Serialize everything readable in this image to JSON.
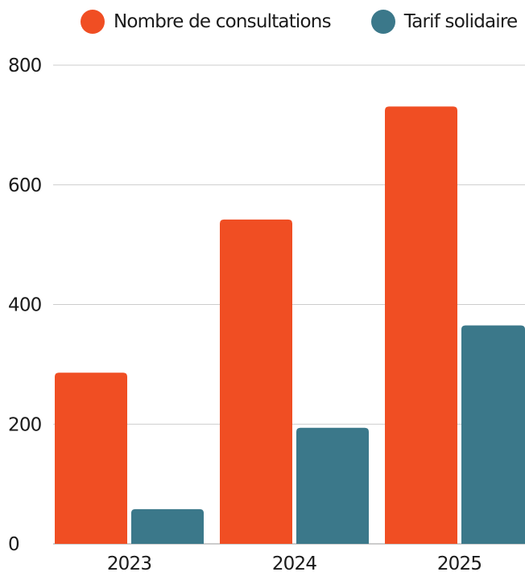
{
  "chart_data": {
    "type": "bar",
    "categories": [
      "2023",
      "2024",
      "2025"
    ],
    "series": [
      {
        "name": "Nombre de consultations",
        "color": "#f04e23",
        "values": [
          286,
          542,
          731
        ]
      },
      {
        "name": "Tarif solidaire",
        "color": "#3b788a",
        "values": [
          58,
          194,
          365
        ]
      }
    ],
    "yticks": [
      "0",
      "200",
      "400",
      "600",
      "800"
    ],
    "ylim": [
      0,
      800
    ],
    "grid": true,
    "legend_position": "top"
  }
}
